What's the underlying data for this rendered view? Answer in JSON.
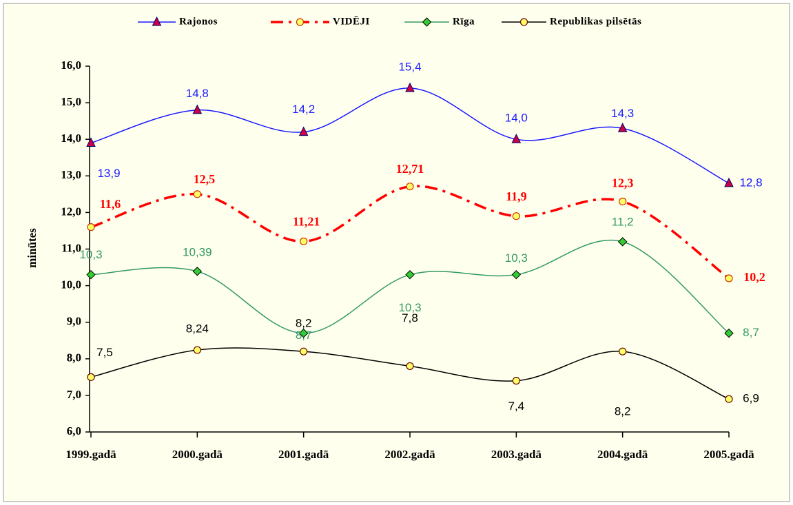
{
  "chart_data": {
    "type": "line",
    "y_label": "minūtes",
    "legend": "top",
    "categories": [
      "1999.gadā",
      "2000.gadā",
      "2001.gadā",
      "2002.gadā",
      "2003.gadā",
      "2004.gadā",
      "2005.gadā"
    ],
    "ylim": [
      6,
      16
    ],
    "yticks": [
      {
        "value": 6,
        "label": "6,0"
      },
      {
        "value": 7,
        "label": "7,0"
      },
      {
        "value": 8,
        "label": "8,0"
      },
      {
        "value": 9,
        "label": "9,0"
      },
      {
        "value": 10,
        "label": "10,0"
      },
      {
        "value": 11,
        "label": "11,0"
      },
      {
        "value": 12,
        "label": "12,0"
      },
      {
        "value": 13,
        "label": "13,0"
      },
      {
        "value": 14,
        "label": "14,0"
      },
      {
        "value": 15,
        "label": "15,0"
      },
      {
        "value": 16,
        "label": "16,0"
      }
    ],
    "series": [
      {
        "name": "Rajonos",
        "color": "#1a1aff",
        "marker": "triangle",
        "marker_fill": "#cc0044",
        "dashed": false,
        "values": [
          13.9,
          14.8,
          14.2,
          15.4,
          14.0,
          14.3,
          12.8
        ],
        "value_labels": [
          "13,9",
          "14,8",
          "14,2",
          "15,4",
          "14,0",
          "14,3",
          "12,8"
        ]
      },
      {
        "name": "VIDĒJI",
        "color": "#ff0000",
        "marker": "circle",
        "marker_fill": "#ffff66",
        "dashed": true,
        "values": [
          11.6,
          12.5,
          11.21,
          12.71,
          11.9,
          12.3,
          10.2
        ],
        "value_labels": [
          "11,6",
          "12,5",
          "11,21",
          "12,71",
          "11,9",
          "12,3",
          "10,2"
        ]
      },
      {
        "name": "Rīga",
        "color": "#339966",
        "marker": "diamond",
        "marker_fill": "#33cc33",
        "dashed": false,
        "values": [
          10.3,
          10.39,
          8.7,
          10.3,
          10.3,
          11.2,
          8.7
        ],
        "value_labels": [
          "10,3",
          "10,39",
          "8,7",
          "10,3",
          "10,3",
          "11,2",
          "8,7"
        ]
      },
      {
        "name": "Republikas pilsētās",
        "color": "#000000",
        "marker": "circle",
        "marker_fill": "#ffff66",
        "dashed": false,
        "values": [
          7.5,
          8.24,
          8.2,
          7.8,
          7.4,
          8.2,
          6.9
        ],
        "value_labels": [
          "7,5",
          "8,24",
          "8,2",
          "7,8",
          "7,4",
          "8,2",
          "6,9"
        ]
      }
    ]
  }
}
